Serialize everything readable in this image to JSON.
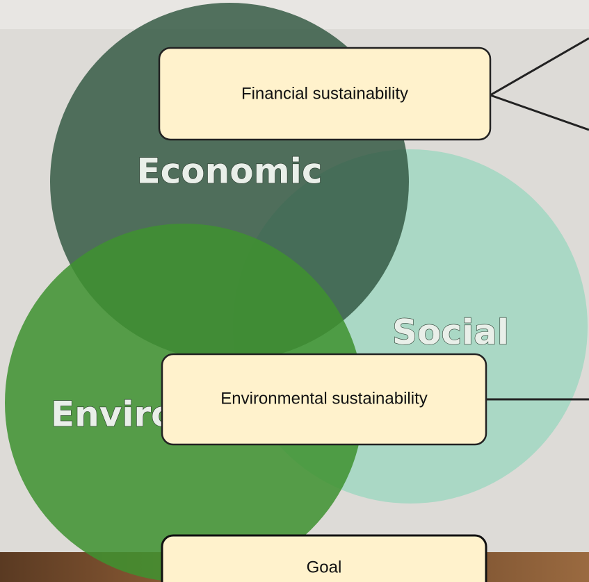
{
  "circles": {
    "economic": "Economic",
    "social": "Social",
    "environmental": "Enviro"
  },
  "boxes": [
    {
      "label": "Financial sustainability"
    },
    {
      "label": "Environmental sustainability"
    },
    {
      "label": "Goal"
    }
  ]
}
